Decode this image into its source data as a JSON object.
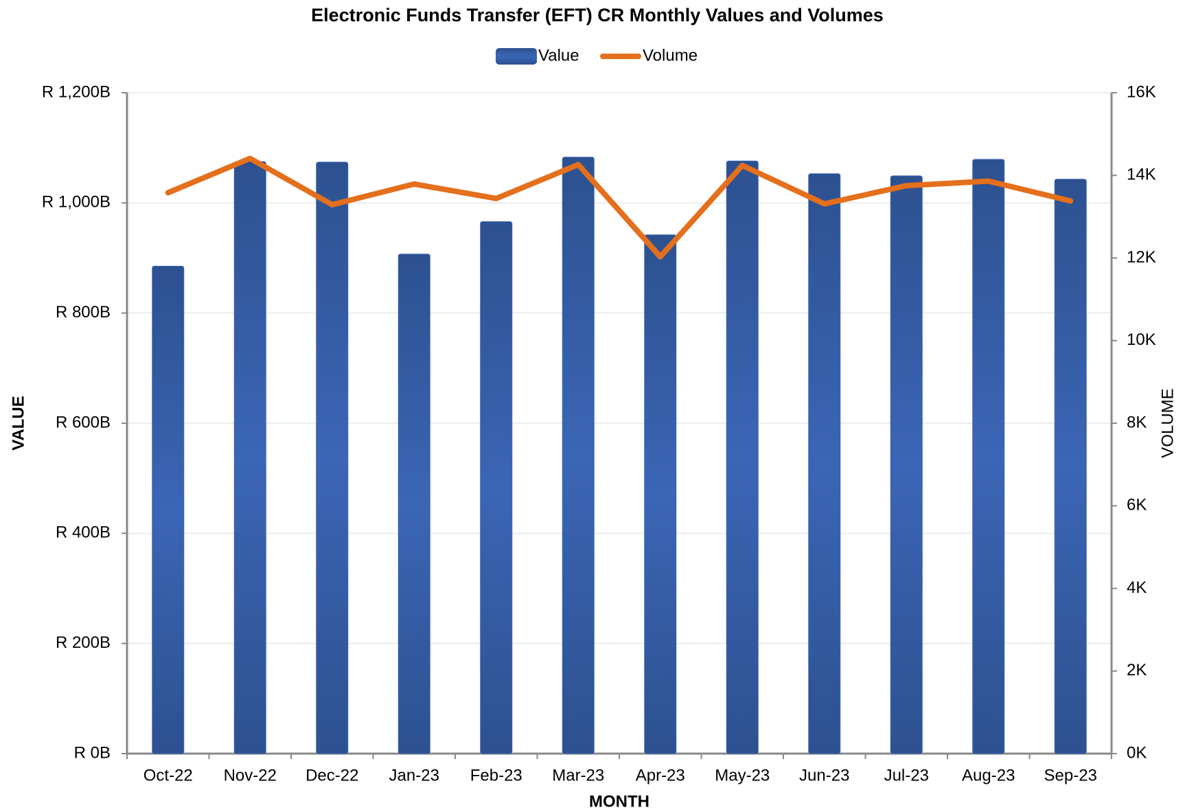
{
  "chart_data": {
    "type": "bar_line",
    "title": "Electronic Funds Transfer (EFT) CR Monthly Values and Volumes",
    "x_label": "MONTH",
    "y_label": "VALUE",
    "y2_label": "VOLUME",
    "categories": [
      "Oct-22",
      "Nov-22",
      "Dec-22",
      "Jan-23",
      "Feb-23",
      "Mar-23",
      "Apr-23",
      "May-23",
      "Jun-23",
      "Jul-23",
      "Aug-23",
      "Sep-23"
    ],
    "series": [
      {
        "name": "Value",
        "type": "bar",
        "color": "#3a64b2",
        "values": [
          885,
          1075,
          1074,
          907,
          966,
          1083,
          942,
          1076,
          1053,
          1049,
          1079,
          1043
        ]
      },
      {
        "name": "Volume",
        "type": "line",
        "axis": "y2",
        "color": "#e46f1c",
        "values": [
          13580,
          14410,
          13290,
          13790,
          13440,
          14260,
          12030,
          14240,
          13310,
          13750,
          13860,
          13380
        ]
      }
    ],
    "ylim": [
      0,
      1200
    ],
    "yticks": [
      {
        "value": 0,
        "label": "R 0B"
      },
      {
        "value": 200,
        "label": "R 200B"
      },
      {
        "value": 400,
        "label": "R 400B"
      },
      {
        "value": 600,
        "label": "R 600B"
      },
      {
        "value": 800,
        "label": "R 800B"
      },
      {
        "value": 1000,
        "label": "R 1,000B"
      },
      {
        "value": 1200,
        "label": "R 1,200B"
      }
    ],
    "y2lim": [
      0,
      16000
    ],
    "y2ticks": [
      {
        "value": 0,
        "label": "0K"
      },
      {
        "value": 2000,
        "label": "2K"
      },
      {
        "value": 4000,
        "label": "4K"
      },
      {
        "value": 6000,
        "label": "6K"
      },
      {
        "value": 8000,
        "label": "8K"
      },
      {
        "value": 10000,
        "label": "10K"
      },
      {
        "value": 12000,
        "label": "12K"
      },
      {
        "value": 14000,
        "label": "14K"
      },
      {
        "value": 16000,
        "label": "16K"
      }
    ],
    "grid": true,
    "legend": "top"
  }
}
